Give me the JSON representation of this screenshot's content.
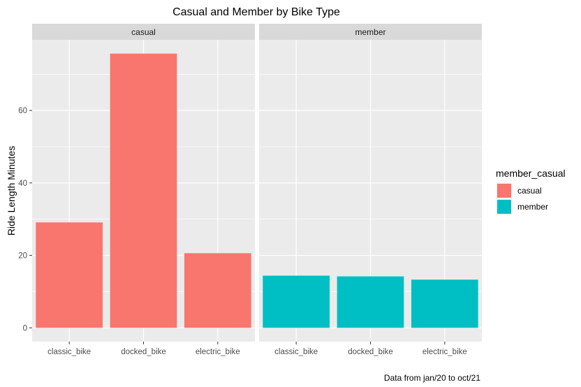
{
  "chart_data": {
    "type": "bar",
    "title": "Casual and Member by Bike Type",
    "ylabel": "Ride Length Minutes",
    "xlabel": "",
    "caption": "Data from jan/20 to oct/21",
    "ylim": [
      -3.8,
      79.5
    ],
    "yticks": [
      0,
      20,
      40,
      60
    ],
    "categories": [
      "classic_bike",
      "docked_bike",
      "electric_bike"
    ],
    "facets": [
      {
        "name": "casual",
        "color": "#F8766D",
        "values": [
          29.1,
          75.7,
          20.6
        ]
      },
      {
        "name": "member",
        "color": "#00BFC4",
        "values": [
          14.4,
          14.2,
          13.3
        ]
      }
    ],
    "legend": {
      "title": "member_casual",
      "placement": "right",
      "items": [
        {
          "label": "casual",
          "color": "#F8766D"
        },
        {
          "label": "member",
          "color": "#00BFC4"
        }
      ]
    },
    "grid": true
  }
}
